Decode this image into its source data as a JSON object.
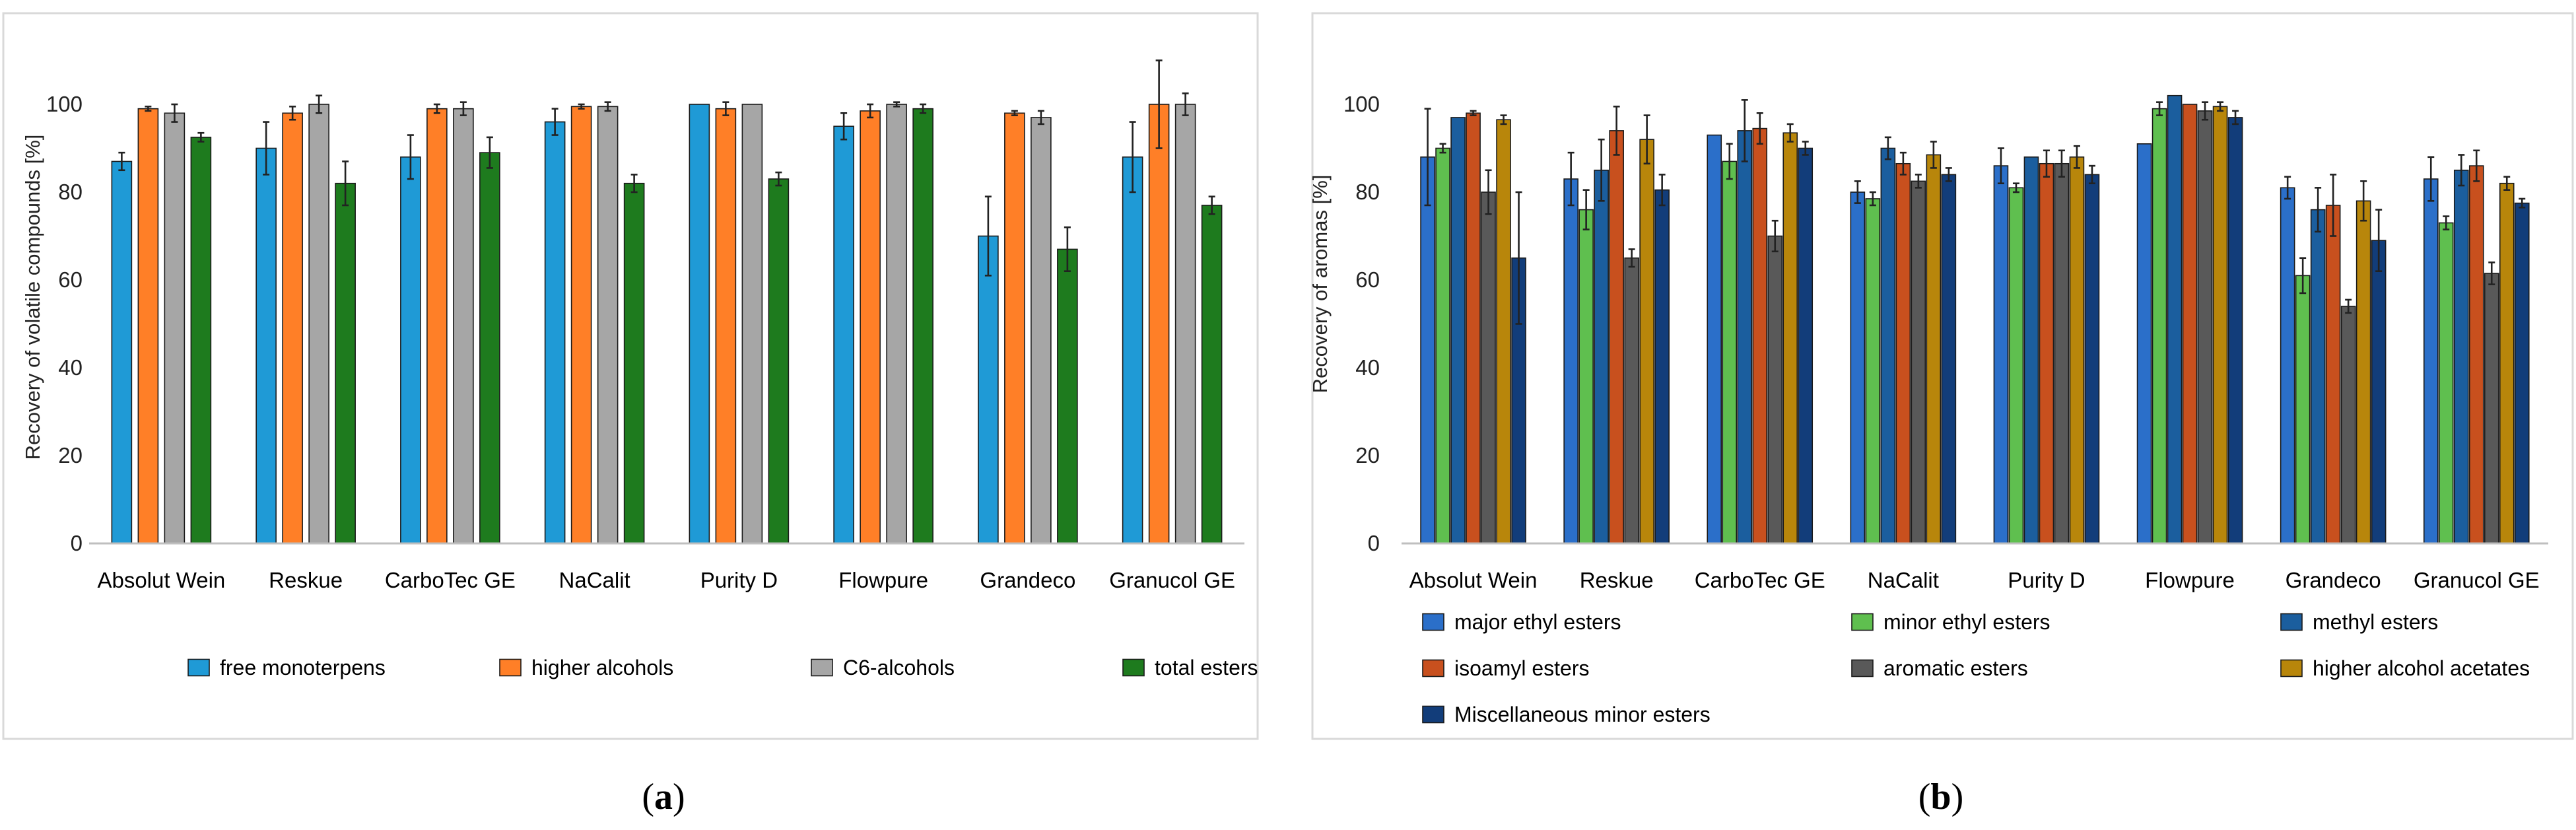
{
  "panels": [
    {
      "id": "a",
      "label_open": "(",
      "label_letter": "a",
      "label_close": ")",
      "legend_columns": 4
    },
    {
      "id": "b",
      "label_open": "(",
      "label_letter": "b",
      "label_close": ")",
      "legend_columns": 3
    }
  ],
  "chart_data": [
    {
      "type": "bar",
      "panel": "a",
      "title": "",
      "xlabel": "",
      "ylabel": "Recovery of volatile compounds [%]",
      "ylim": [
        0,
        115
      ],
      "yticks": [
        0,
        20,
        40,
        60,
        80,
        100
      ],
      "grid": false,
      "legend_position": "bottom",
      "categories": [
        "Absolut Wein",
        "Reskue",
        "CarboTec GE",
        "NaCalit",
        "Purity D",
        "Flowpure",
        "Grandeco",
        "Granucol GE"
      ],
      "series": [
        {
          "name": "free monoterpens",
          "color": "#1f9ad6",
          "values": [
            87,
            90,
            88,
            96,
            100,
            95,
            70,
            88
          ],
          "errors": [
            2,
            6,
            5,
            3,
            0,
            3,
            9,
            8
          ]
        },
        {
          "name": "higher alcohols",
          "color": "#ff7f27",
          "values": [
            99,
            98,
            99,
            99.5,
            99,
            98.5,
            98,
            100
          ],
          "errors": [
            0.5,
            1.5,
            1,
            0.5,
            1.5,
            1.5,
            0.5,
            10
          ]
        },
        {
          "name": "C6-alcohols",
          "color": "#a6a6a6",
          "values": [
            98,
            100,
            99,
            99.5,
            100,
            100,
            97,
            100
          ],
          "errors": [
            2,
            2,
            1.5,
            1,
            0,
            0.5,
            1.5,
            2.5
          ]
        },
        {
          "name": "total esters",
          "color": "#1e7b1e",
          "values": [
            92.5,
            82,
            89,
            82,
            83,
            99,
            67,
            77
          ],
          "errors": [
            1,
            5,
            3.5,
            2,
            1.5,
            1,
            5,
            2
          ]
        }
      ]
    },
    {
      "type": "bar",
      "panel": "b",
      "title": "",
      "xlabel": "",
      "ylabel": "Recovery of aromas [%]",
      "ylim": [
        0,
        115
      ],
      "yticks": [
        0,
        20,
        40,
        60,
        80,
        100
      ],
      "grid": false,
      "legend_position": "bottom",
      "categories": [
        "Absolut Wein",
        "Reskue",
        "CarboTec GE",
        "NaCalit",
        "Purity D",
        "Flowpure",
        "Grandeco",
        "Granucol GE"
      ],
      "series": [
        {
          "name": "major ethyl esters",
          "color": "#2b6fc9",
          "values": [
            88,
            83,
            93,
            80,
            86,
            91,
            81,
            83
          ],
          "errors": [
            11,
            6,
            0,
            2.5,
            4,
            0,
            2.5,
            5
          ]
        },
        {
          "name": "minor ethyl esters",
          "color": "#5fbf4f",
          "values": [
            90,
            76,
            87,
            78.5,
            81,
            99,
            61,
            73
          ],
          "errors": [
            1,
            4.5,
            4,
            1.5,
            1,
            1.5,
            4,
            1.5
          ]
        },
        {
          "name": "methyl esters",
          "color": "#1b5e9e",
          "values": [
            97,
            85,
            94,
            90,
            88,
            102,
            76,
            85
          ],
          "errors": [
            0,
            7,
            7,
            2.5,
            0,
            0,
            5,
            3.5
          ]
        },
        {
          "name": "isoamyl esters",
          "color": "#c8501e",
          "values": [
            98,
            94,
            94.5,
            86.5,
            86.5,
            100,
            77,
            86
          ],
          "errors": [
            0.5,
            5.5,
            3.5,
            2.5,
            3,
            0,
            7,
            3.5
          ]
        },
        {
          "name": "aromatic esters",
          "color": "#595959",
          "values": [
            80,
            65,
            70,
            82.5,
            86.5,
            98.5,
            54,
            61.5
          ],
          "errors": [
            5,
            2,
            3.5,
            1.5,
            3,
            2,
            1.5,
            2.5
          ]
        },
        {
          "name": "higher alcohol acetates",
          "color": "#b8860b",
          "values": [
            96.5,
            92,
            93.5,
            88.5,
            88,
            99.5,
            78,
            82
          ],
          "errors": [
            1,
            5.5,
            2,
            3,
            2.5,
            1,
            4.5,
            1.5
          ]
        },
        {
          "name": "Miscellaneous minor esters",
          "color": "#123d7a",
          "values": [
            65,
            80.5,
            90,
            84,
            84,
            97,
            69,
            77.5
          ],
          "errors": [
            15,
            3.5,
            1.5,
            1.5,
            2,
            1.5,
            7,
            1
          ]
        }
      ]
    }
  ]
}
